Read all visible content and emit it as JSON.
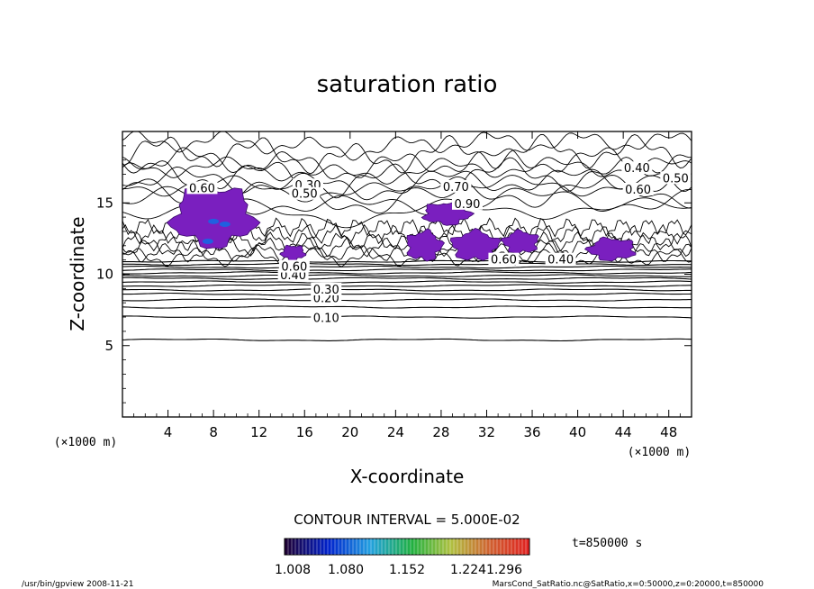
{
  "chart_data": {
    "type": "contour",
    "title": "saturation ratio",
    "xlabel": "X-coordinate",
    "ylabel": "Z-coordinate",
    "x_unit": "(×1000 m)",
    "xlim": [
      0,
      50
    ],
    "ylim": [
      0,
      20
    ],
    "x_ticks": [
      4,
      8,
      12,
      16,
      20,
      24,
      28,
      32,
      36,
      40,
      44,
      48
    ],
    "y_ticks": [
      5,
      10,
      15
    ],
    "contour_interval_text": "CONTOUR INTERVAL = 5.000E-02",
    "time_text": "t=850000 s",
    "colorbar": {
      "tick_labels": [
        "1.008",
        "1.080",
        "1.152",
        "1.224",
        "1.296"
      ],
      "range": [
        1.008,
        1.296
      ]
    },
    "contour_labels": [
      {
        "text": "0.10",
        "x": 17.9,
        "z": 6.9
      },
      {
        "text": "0.20",
        "x": 17.9,
        "z": 8.3
      },
      {
        "text": "0.30",
        "x": 17.9,
        "z": 8.9
      },
      {
        "text": "0.40",
        "x": 15.0,
        "z": 9.9
      },
      {
        "text": "0.60",
        "x": 15.1,
        "z": 10.5
      },
      {
        "text": "0.60",
        "x": 7.0,
        "z": 16.0
      },
      {
        "text": "0.30",
        "x": 16.3,
        "z": 16.2
      },
      {
        "text": "0.50",
        "x": 16.0,
        "z": 15.6
      },
      {
        "text": "0.70",
        "x": 29.3,
        "z": 16.1
      },
      {
        "text": "0.90",
        "x": 30.3,
        "z": 14.9
      },
      {
        "text": "0.40",
        "x": 45.2,
        "z": 17.4
      },
      {
        "text": "0.50",
        "x": 48.6,
        "z": 16.7
      },
      {
        "text": "0.60",
        "x": 45.3,
        "z": 15.9
      },
      {
        "text": "0.60",
        "x": 33.5,
        "z": 11.0
      },
      {
        "text": "0.40",
        "x": 38.5,
        "z": 11.0
      }
    ],
    "supersaturated_regions": [
      {
        "x": [
          4.5,
          11.5
        ],
        "z": [
          12.0,
          16.0
        ]
      },
      {
        "x": [
          26.5,
          30.5
        ],
        "z": [
          13.5,
          15.0
        ]
      },
      {
        "x": [
          25.0,
          28.0
        ],
        "z": [
          11.0,
          13.0
        ]
      },
      {
        "x": [
          29.0,
          33.0
        ],
        "z": [
          11.0,
          13.0
        ]
      },
      {
        "x": [
          33.5,
          36.5
        ],
        "z": [
          11.5,
          13.0
        ]
      },
      {
        "x": [
          41.0,
          45.0
        ],
        "z": [
          11.0,
          12.5
        ]
      },
      {
        "x": [
          14.0,
          16.0
        ],
        "z": [
          11.0,
          12.0
        ]
      }
    ]
  },
  "footer": {
    "left": "/usr/bin/gpview   2008-11-21",
    "right": "MarsCond_SatRatio.nc@SatRatio,x=0:50000,z=0:20000,t=850000"
  }
}
